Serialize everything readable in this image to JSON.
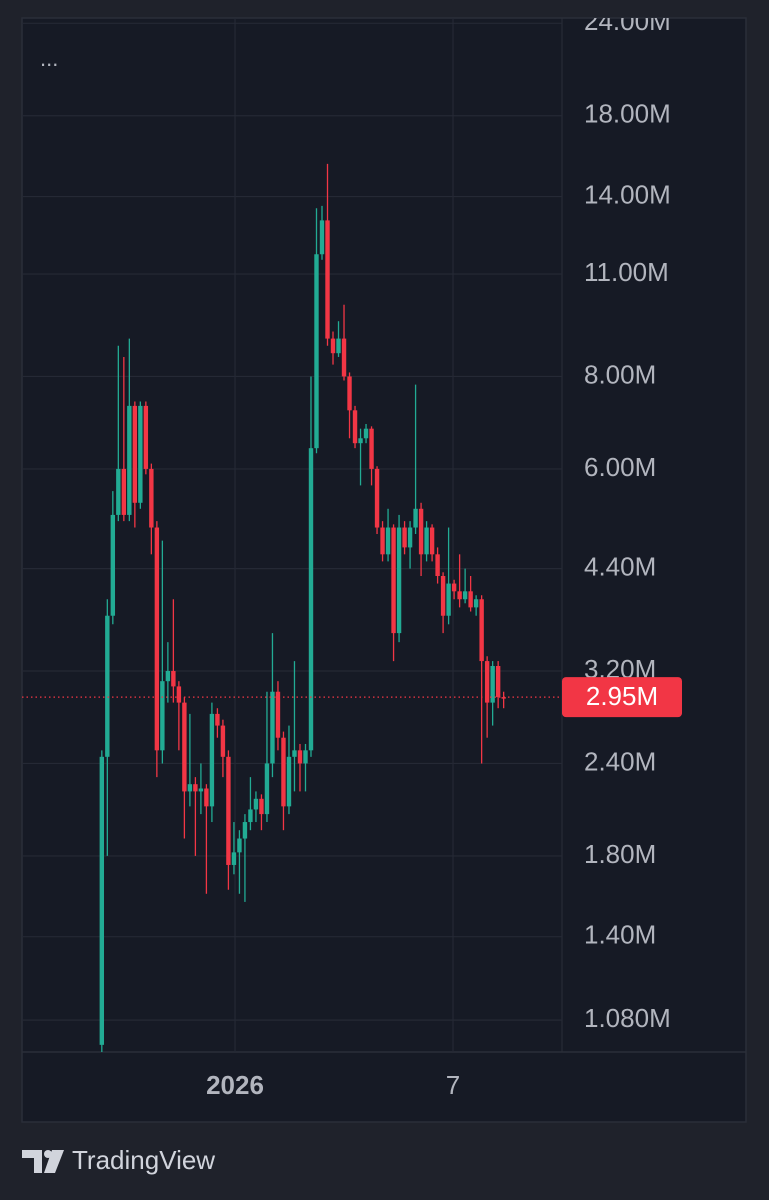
{
  "chart_data": {
    "type": "candlestick",
    "menu_text": "...",
    "log_scale": true,
    "grid": true,
    "up_color": "#22ab94",
    "down_color": "#f23645",
    "ylim": [
      978000,
      24400000
    ],
    "yticks": [
      {
        "value": 24000000,
        "label": "24.00M"
      },
      {
        "value": 18000000,
        "label": "18.00M"
      },
      {
        "value": 14000000,
        "label": "14.00M"
      },
      {
        "value": 11000000,
        "label": "11.00M"
      },
      {
        "value": 8000000,
        "label": "8.00M"
      },
      {
        "value": 6000000,
        "label": "6.00M"
      },
      {
        "value": 4400000,
        "label": "4.40M"
      },
      {
        "value": 3200000,
        "label": "3.20M"
      },
      {
        "value": 2400000,
        "label": "2.40M"
      },
      {
        "value": 1800000,
        "label": "1.80M"
      },
      {
        "value": 1400000,
        "label": "1.40M"
      },
      {
        "value": 1080000,
        "label": "1.080M"
      }
    ],
    "xlim": [
      -14.5,
      83.6
    ],
    "xticks": [
      {
        "value": 24.2,
        "label": "2026"
      },
      {
        "value": 63.8,
        "label": "7"
      }
    ],
    "last_price": {
      "value": 2950000,
      "label": "2.95M"
    },
    "x": [
      0,
      1,
      2,
      3,
      4,
      5,
      6,
      7,
      8,
      9,
      10,
      11,
      12,
      13,
      14,
      15,
      16,
      17,
      18,
      19,
      20,
      21,
      22,
      23,
      24,
      25,
      26,
      27,
      28,
      29,
      30,
      31,
      32,
      33,
      34,
      35,
      36,
      37,
      38,
      39,
      40,
      41,
      42,
      43,
      44,
      45,
      46,
      47,
      48,
      49,
      50,
      51,
      52,
      53,
      54,
      55,
      56,
      57,
      58,
      59,
      60,
      61,
      62,
      63,
      64,
      65,
      66,
      67,
      68,
      69,
      70,
      71,
      72,
      73
    ],
    "open": [
      1000000,
      2450000,
      3800000,
      5200000,
      6000000,
      5200000,
      7300000,
      5400000,
      7300000,
      6000000,
      5000000,
      2500000,
      3100000,
      3200000,
      3050000,
      2900000,
      2200000,
      2250000,
      2200000,
      2220000,
      2100000,
      2800000,
      2700000,
      2450000,
      1750000,
      1820000,
      1900000,
      2000000,
      2080000,
      2150000,
      2050000,
      2400000,
      3000000,
      2600000,
      2100000,
      2450000,
      2500000,
      2400000,
      2500000,
      6400000,
      11700000,
      13000000,
      9000000,
      8600000,
      9000000,
      8000000,
      7200000,
      6500000,
      6600000,
      6800000,
      6000000,
      5000000,
      4600000,
      5000000,
      3600000,
      5000000,
      4700000,
      5000000,
      5300000,
      4600000,
      5000000,
      4600000,
      4300000,
      3800000,
      4200000,
      4100000,
      4000000,
      4100000,
      3900000,
      4000000,
      3300000,
      2900000,
      3250000,
      2950000
    ],
    "high": [
      2500000,
      4000000,
      5600000,
      8800000,
      8500000,
      9000000,
      7400000,
      7400000,
      7400000,
      6100000,
      5100000,
      4800000,
      3500000,
      4000000,
      3100000,
      2950000,
      2800000,
      2300000,
      2400000,
      2250000,
      2900000,
      2850000,
      2750000,
      2500000,
      2000000,
      1950000,
      2050000,
      2300000,
      2200000,
      2180000,
      3000000,
      3600000,
      3100000,
      2650000,
      2700000,
      3300000,
      2550000,
      2550000,
      8000000,
      13500000,
      13600000,
      15500000,
      9200000,
      9500000,
      10000000,
      8100000,
      7300000,
      6800000,
      6900000,
      6850000,
      6050000,
      5100000,
      5300000,
      5050000,
      5200000,
      5100000,
      5100000,
      7800000,
      5400000,
      5100000,
      5050000,
      4700000,
      4350000,
      5000000,
      4250000,
      4600000,
      4400000,
      4300000,
      4050000,
      4050000,
      3350000,
      3300000,
      3300000,
      3000000
    ],
    "low": [
      970000,
      1800000,
      3700000,
      5100000,
      5100000,
      5100000,
      5000000,
      5300000,
      5900000,
      4600000,
      2300000,
      2400000,
      2900000,
      2900000,
      2500000,
      1900000,
      2100000,
      1800000,
      2050000,
      1600000,
      2000000,
      2600000,
      2300000,
      1620000,
      1700000,
      1600000,
      1560000,
      1950000,
      2000000,
      1950000,
      2000000,
      2300000,
      2500000,
      1950000,
      2050000,
      2200000,
      2200000,
      2200000,
      2450000,
      6300000,
      11500000,
      8800000,
      8300000,
      8500000,
      7900000,
      6600000,
      6400000,
      5700000,
      6500000,
      5700000,
      4900000,
      4500000,
      4500000,
      3300000,
      3500000,
      4600000,
      4400000,
      4900000,
      4300000,
      4500000,
      4500000,
      4200000,
      3600000,
      3700000,
      4000000,
      3900000,
      3950000,
      3850000,
      3800000,
      2400000,
      2600000,
      2700000,
      2850000,
      2850000
    ],
    "close": [
      2450000,
      3800000,
      5200000,
      6000000,
      5200000,
      7300000,
      5400000,
      7300000,
      6000000,
      5000000,
      2500000,
      3100000,
      3200000,
      3050000,
      2900000,
      2200000,
      2250000,
      2200000,
      2220000,
      2100000,
      2800000,
      2700000,
      2450000,
      1750000,
      1820000,
      1900000,
      2000000,
      2080000,
      2150000,
      2050000,
      2400000,
      3000000,
      2600000,
      2100000,
      2450000,
      2500000,
      2400000,
      2500000,
      6400000,
      11700000,
      13000000,
      9000000,
      8600000,
      9000000,
      8000000,
      7200000,
      6500000,
      6600000,
      6800000,
      6000000,
      5000000,
      4600000,
      5000000,
      3600000,
      5000000,
      4700000,
      5000000,
      5300000,
      4600000,
      5000000,
      4600000,
      4300000,
      3800000,
      4200000,
      4100000,
      4000000,
      4100000,
      3900000,
      4000000,
      3300000,
      2900000,
      3250000,
      2950000,
      2950000
    ]
  },
  "footer": {
    "brand": "TradingView"
  }
}
